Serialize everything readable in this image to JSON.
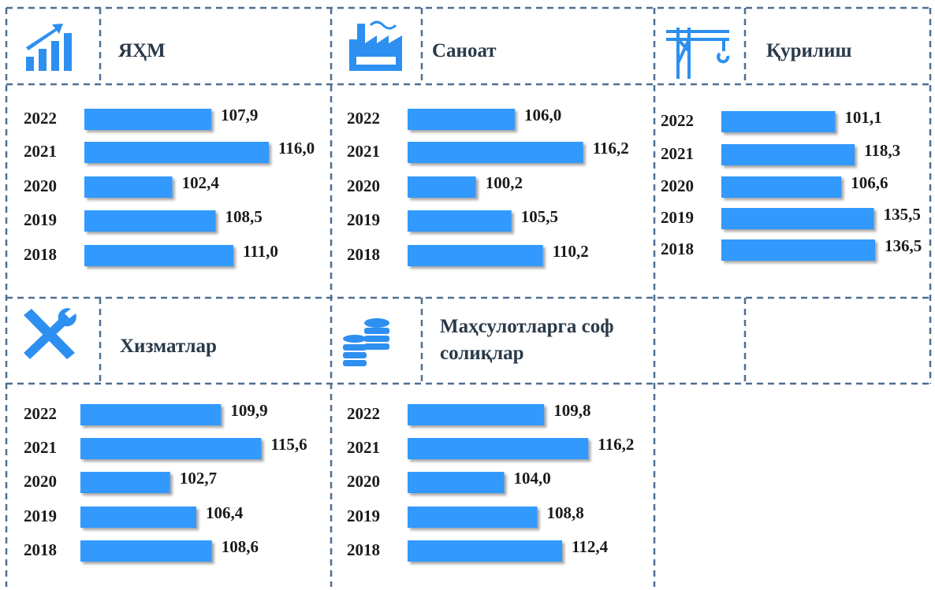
{
  "chart_data": [
    {
      "type": "bar",
      "title": "ЯҲМ",
      "categories": [
        "2022",
        "2021",
        "2020",
        "2019",
        "2018"
      ],
      "values": [
        107.9,
        116.0,
        102.4,
        108.5,
        111.0
      ],
      "value_labels": [
        "107,9",
        "116,0",
        "102,4",
        "108,5",
        "111,0"
      ],
      "color": "#3399ff",
      "xlim": [
        90,
        118
      ]
    },
    {
      "type": "bar",
      "title": "Саноат",
      "categories": [
        "2022",
        "2021",
        "2020",
        "2019",
        "2018"
      ],
      "values": [
        106.0,
        116.2,
        100.2,
        105.5,
        110.2
      ],
      "value_labels": [
        "106,0",
        "116,2",
        "100,2",
        "105,5",
        "110,2"
      ],
      "color": "#3399ff",
      "xlim": [
        90,
        118
      ]
    },
    {
      "type": "bar",
      "title": "Қурилиш",
      "categories": [
        "2022",
        "2021",
        "2020",
        "2019",
        "2018"
      ],
      "values": [
        101.1,
        118.3,
        106.6,
        135.5,
        136.5
      ],
      "value_labels": [
        "101,1",
        "118,3",
        "106,6",
        "135,5",
        "136,5"
      ],
      "color": "#3399ff",
      "xlim": [
        0,
        140
      ]
    },
    {
      "type": "bar",
      "title": "Хизматлар",
      "categories": [
        "2022",
        "2021",
        "2020",
        "2019",
        "2018"
      ],
      "values": [
        109.9,
        115.6,
        102.7,
        106.4,
        108.6
      ],
      "value_labels": [
        "109,9",
        "115,6",
        "102,7",
        "106,4",
        "108,6"
      ],
      "color": "#3399ff",
      "xlim": [
        90,
        118
      ]
    },
    {
      "type": "bar",
      "title": "Маҳсулотларга соф солиқлар",
      "categories": [
        "2022",
        "2021",
        "2020",
        "2019",
        "2018"
      ],
      "values": [
        109.8,
        116.2,
        104.0,
        108.8,
        112.4
      ],
      "value_labels": [
        "109,8",
        "116,2",
        "104,0",
        "108,8",
        "112,4"
      ],
      "color": "#3399ff",
      "xlim": [
        90,
        118
      ]
    }
  ]
}
